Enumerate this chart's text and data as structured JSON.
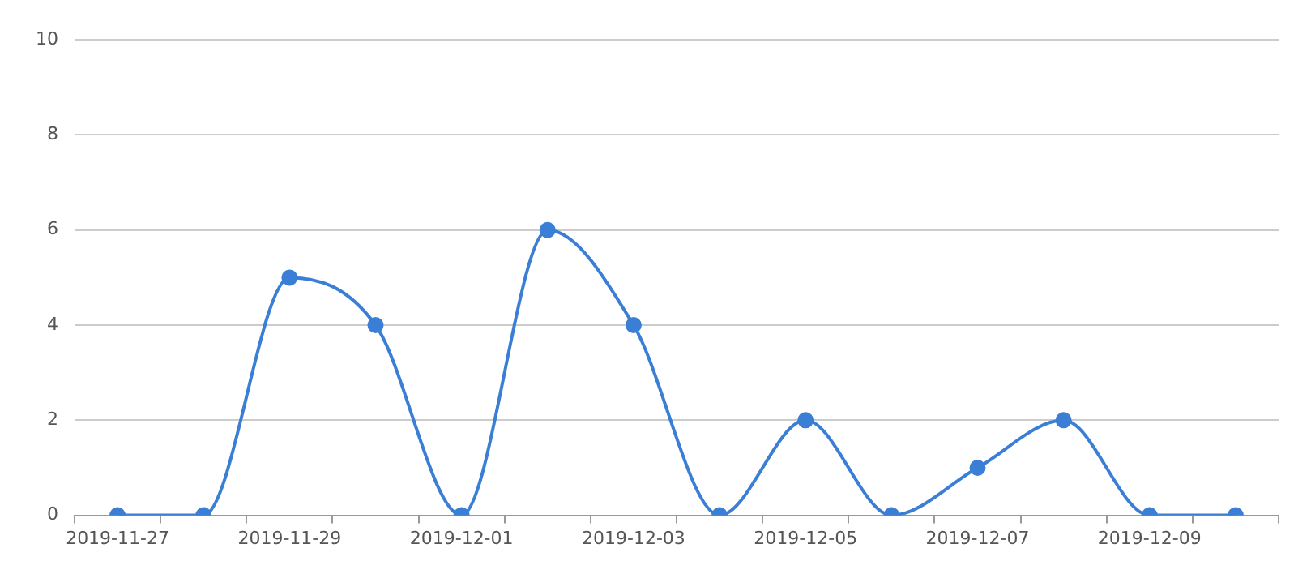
{
  "chart_data": {
    "type": "line",
    "categories": [
      "2019-11-27",
      null,
      "2019-11-29",
      null,
      "2019-12-01",
      null,
      "2019-12-03",
      null,
      "2019-12-05",
      null,
      "2019-12-07",
      null,
      "2019-12-09",
      null
    ],
    "series": [
      {
        "color": "#3a7fd5",
        "values": [
          0,
          0,
          5,
          4,
          0,
          6,
          4,
          0,
          2,
          0,
          1,
          2,
          0,
          0
        ]
      }
    ],
    "ylim": [
      0,
      10
    ],
    "yticks": [
      0,
      2,
      4,
      6,
      8,
      10
    ],
    "grid": "y",
    "marker": "circle",
    "line_style": "solid",
    "legend": false
  }
}
